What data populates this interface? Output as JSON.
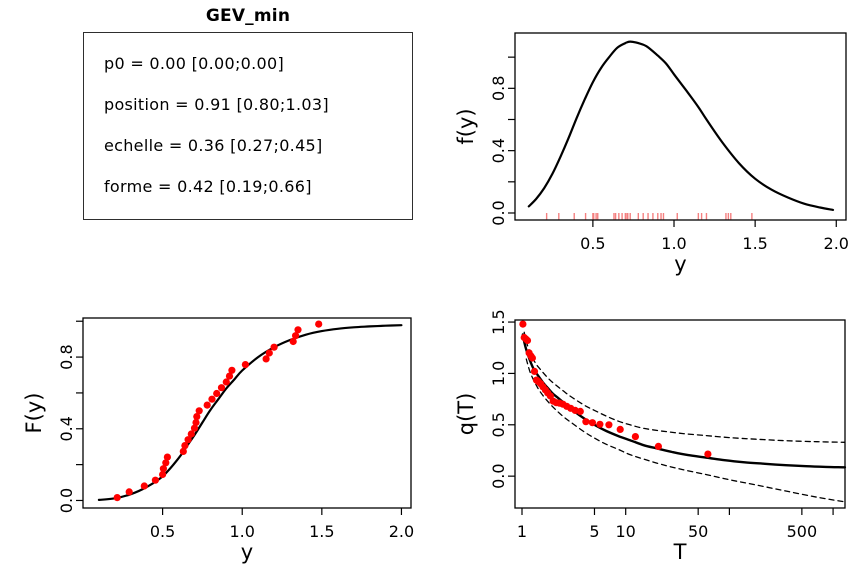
{
  "figure": {
    "title": "GEV_min",
    "colors": {
      "foreground": "#000000",
      "point_red": "#ff0000",
      "rug_red": "#f48080",
      "box_border": "#2e2e2e"
    }
  },
  "param_box": {
    "title": "GEV_min",
    "lines": [
      "p0 = 0.00 [0.00;0.00]",
      "position = 0.91 [0.80;1.03]",
      "echelle = 0.36 [0.27;0.45]",
      "forme = 0.42 [0.19;0.66]"
    ],
    "parameters": [
      {
        "name": "p0",
        "estimate": 0.0,
        "ci_low": 0.0,
        "ci_high": 0.0
      },
      {
        "name": "position",
        "estimate": 0.91,
        "ci_low": 0.8,
        "ci_high": 1.03
      },
      {
        "name": "echelle",
        "estimate": 0.36,
        "ci_low": 0.27,
        "ci_high": 0.45
      },
      {
        "name": "forme",
        "estimate": 0.42,
        "ci_low": 0.19,
        "ci_high": 0.66
      }
    ]
  },
  "chart_data": [
    {
      "id": "density",
      "type": "line",
      "title": "",
      "xlabel": "y",
      "ylabel": "f(y)",
      "xscale": "linear",
      "xlim": [
        0.02,
        2.06
      ],
      "ylim": [
        -0.045,
        1.155
      ],
      "grid": false,
      "xticks": [
        {
          "v": 0.5,
          "l": "0.5"
        },
        {
          "v": 1.0,
          "l": "1.0"
        },
        {
          "v": 1.5,
          "l": "1.5"
        },
        {
          "v": 2.0,
          "l": "2.0"
        }
      ],
      "yticks": [
        {
          "v": 0.0,
          "l": "0.0"
        },
        {
          "v": 0.2,
          "l": ""
        },
        {
          "v": 0.4,
          "l": "0.4"
        },
        {
          "v": 0.6,
          "l": ""
        },
        {
          "v": 0.8,
          "l": "0.8"
        },
        {
          "v": 1.0,
          "l": ""
        }
      ],
      "series": [
        {
          "name": "data-rug",
          "kind": "rug",
          "color": "#f48080",
          "values": [
            0.215,
            0.29,
            0.385,
            0.455,
            0.5,
            0.505,
            0.52,
            0.53,
            0.63,
            0.64,
            0.66,
            0.68,
            0.7,
            0.71,
            0.715,
            0.73,
            0.78,
            0.81,
            0.84,
            0.87,
            0.9,
            0.92,
            0.935,
            1.02,
            1.15,
            1.17,
            1.2,
            1.32,
            1.335,
            1.35,
            1.48
          ]
        },
        {
          "name": "density-curve",
          "kind": "line",
          "color": "#000000",
          "width": 2.2,
          "dash": "",
          "points": [
            [
              0.105,
              0.042
            ],
            [
              0.15,
              0.09
            ],
            [
              0.2,
              0.16
            ],
            [
              0.25,
              0.25
            ],
            [
              0.3,
              0.36
            ],
            [
              0.35,
              0.48
            ],
            [
              0.4,
              0.61
            ],
            [
              0.45,
              0.73
            ],
            [
              0.5,
              0.84
            ],
            [
              0.55,
              0.93
            ],
            [
              0.6,
              1.0
            ],
            [
              0.65,
              1.06
            ],
            [
              0.7,
              1.09
            ],
            [
              0.73,
              1.1
            ],
            [
              0.78,
              1.09
            ],
            [
              0.83,
              1.07
            ],
            [
              0.9,
              1.01
            ],
            [
              0.95,
              0.96
            ],
            [
              1.0,
              0.89
            ],
            [
              1.08,
              0.78
            ],
            [
              1.15,
              0.68
            ],
            [
              1.2,
              0.6
            ],
            [
              1.3,
              0.45
            ],
            [
              1.4,
              0.32
            ],
            [
              1.5,
              0.22
            ],
            [
              1.6,
              0.15
            ],
            [
              1.7,
              0.1
            ],
            [
              1.8,
              0.06
            ],
            [
              1.9,
              0.035
            ],
            [
              1.98,
              0.02
            ]
          ]
        }
      ]
    },
    {
      "id": "cdf",
      "type": "line+scatter",
      "title": "",
      "xlabel": "y",
      "ylabel": "F(y)",
      "xscale": "linear",
      "xlim": [
        0.0,
        2.06
      ],
      "ylim": [
        -0.042,
        1.018
      ],
      "grid": false,
      "xticks": [
        {
          "v": 0.5,
          "l": "0.5"
        },
        {
          "v": 1.0,
          "l": "1.0"
        },
        {
          "v": 1.5,
          "l": "1.5"
        },
        {
          "v": 2.0,
          "l": "2.0"
        }
      ],
      "yticks": [
        {
          "v": 0.0,
          "l": "0.0"
        },
        {
          "v": 0.2,
          "l": ""
        },
        {
          "v": 0.4,
          "l": "0.4"
        },
        {
          "v": 0.6,
          "l": ""
        },
        {
          "v": 0.8,
          "l": "0.8"
        },
        {
          "v": 1.0,
          "l": ""
        }
      ],
      "series": [
        {
          "name": "fitted-cdf-curve",
          "kind": "line",
          "color": "#000000",
          "width": 2.2,
          "dash": "",
          "points": [
            [
              0.1,
              0.003
            ],
            [
              0.2,
              0.012
            ],
            [
              0.3,
              0.035
            ],
            [
              0.4,
              0.075
            ],
            [
              0.5,
              0.135
            ],
            [
              0.6,
              0.235
            ],
            [
              0.65,
              0.3
            ],
            [
              0.7,
              0.365
            ],
            [
              0.75,
              0.435
            ],
            [
              0.8,
              0.505
            ],
            [
              0.85,
              0.565
            ],
            [
              0.9,
              0.625
            ],
            [
              0.95,
              0.675
            ],
            [
              1.0,
              0.725
            ],
            [
              1.1,
              0.8
            ],
            [
              1.2,
              0.855
            ],
            [
              1.3,
              0.895
            ],
            [
              1.4,
              0.925
            ],
            [
              1.5,
              0.945
            ],
            [
              1.6,
              0.958
            ],
            [
              1.7,
              0.966
            ],
            [
              1.8,
              0.971
            ],
            [
              1.9,
              0.975
            ],
            [
              2.0,
              0.978
            ]
          ]
        },
        {
          "name": "empirical-cdf-points",
          "kind": "points",
          "color": "#ff0000",
          "r": 3.6,
          "points": [
            [
              0.215,
              0.016
            ],
            [
              0.29,
              0.048
            ],
            [
              0.385,
              0.081
            ],
            [
              0.455,
              0.113
            ],
            [
              0.5,
              0.145
            ],
            [
              0.505,
              0.177
            ],
            [
              0.52,
              0.21
            ],
            [
              0.53,
              0.242
            ],
            [
              0.63,
              0.274
            ],
            [
              0.64,
              0.306
            ],
            [
              0.66,
              0.339
            ],
            [
              0.68,
              0.371
            ],
            [
              0.7,
              0.403
            ],
            [
              0.71,
              0.435
            ],
            [
              0.715,
              0.468
            ],
            [
              0.73,
              0.5
            ],
            [
              0.78,
              0.532
            ],
            [
              0.81,
              0.565
            ],
            [
              0.84,
              0.597
            ],
            [
              0.87,
              0.629
            ],
            [
              0.9,
              0.661
            ],
            [
              0.92,
              0.694
            ],
            [
              0.935,
              0.726
            ],
            [
              1.02,
              0.758
            ],
            [
              1.15,
              0.79
            ],
            [
              1.17,
              0.823
            ],
            [
              1.2,
              0.855
            ],
            [
              1.32,
              0.887
            ],
            [
              1.335,
              0.919
            ],
            [
              1.35,
              0.952
            ],
            [
              1.48,
              0.984
            ]
          ]
        }
      ]
    },
    {
      "id": "return_level",
      "type": "line+scatter",
      "title": "",
      "xlabel": "T",
      "ylabel": "q(T)",
      "xscale": "log",
      "xlim": [
        0.856,
        1303
      ],
      "ylim": [
        -0.31,
        1.52
      ],
      "grid": false,
      "xticks": [
        {
          "v": 1,
          "l": "1"
        },
        {
          "v": 5,
          "l": "5"
        },
        {
          "v": 10,
          "l": "10"
        },
        {
          "v": 50,
          "l": "50"
        },
        {
          "v": 100,
          "l": ""
        },
        {
          "v": 500,
          "l": "500"
        },
        {
          "v": 1000,
          "l": ""
        }
      ],
      "yticks": [
        {
          "v": 0.0,
          "l": "0.0"
        },
        {
          "v": 0.5,
          "l": "0.5"
        },
        {
          "v": 1.0,
          "l": "1.0"
        },
        {
          "v": 1.5,
          "l": "1.5"
        }
      ],
      "series": [
        {
          "name": "quantile-curve",
          "kind": "line",
          "color": "#000000",
          "width": 2.4,
          "dash": "",
          "points": [
            [
              1.02,
              1.38
            ],
            [
              1.05,
              1.31
            ],
            [
              1.1,
              1.23
            ],
            [
              1.2,
              1.12
            ],
            [
              1.3,
              1.04
            ],
            [
              1.45,
              0.97
            ],
            [
              1.6,
              0.91
            ],
            [
              1.8,
              0.85
            ],
            [
              2.0,
              0.8
            ],
            [
              2.3,
              0.75
            ],
            [
              2.7,
              0.69
            ],
            [
              3.2,
              0.63
            ],
            [
              4.0,
              0.56
            ],
            [
              5.0,
              0.5
            ],
            [
              6.5,
              0.44
            ],
            [
              8.5,
              0.39
            ],
            [
              11,
              0.35
            ],
            [
              15,
              0.3
            ],
            [
              20,
              0.27
            ],
            [
              28,
              0.235
            ],
            [
              40,
              0.205
            ],
            [
              60,
              0.18
            ],
            [
              90,
              0.155
            ],
            [
              140,
              0.135
            ],
            [
              220,
              0.12
            ],
            [
              350,
              0.107
            ],
            [
              550,
              0.097
            ],
            [
              850,
              0.09
            ],
            [
              1300,
              0.086
            ]
          ]
        },
        {
          "name": "ci-upper-curve",
          "kind": "line",
          "color": "#000000",
          "width": 1.3,
          "dash": "5 4",
          "points": [
            [
              1.05,
              1.4
            ],
            [
              1.1,
              1.31
            ],
            [
              1.2,
              1.2
            ],
            [
              1.35,
              1.1
            ],
            [
              1.5,
              1.04
            ],
            [
              1.8,
              0.95
            ],
            [
              2.1,
              0.89
            ],
            [
              2.5,
              0.83
            ],
            [
              3,
              0.77
            ],
            [
              4,
              0.69
            ],
            [
              5,
              0.64
            ],
            [
              6.5,
              0.585
            ],
            [
              8.5,
              0.535
            ],
            [
              11,
              0.5
            ],
            [
              15,
              0.465
            ],
            [
              22,
              0.44
            ],
            [
              35,
              0.415
            ],
            [
              60,
              0.395
            ],
            [
              100,
              0.375
            ],
            [
              180,
              0.36
            ],
            [
              350,
              0.345
            ],
            [
              700,
              0.335
            ],
            [
              1300,
              0.33
            ]
          ]
        },
        {
          "name": "ci-lower-curve",
          "kind": "line",
          "color": "#000000",
          "width": 1.3,
          "dash": "5 4",
          "points": [
            [
              1.1,
              1.14
            ],
            [
              1.2,
              1.01
            ],
            [
              1.35,
              0.9
            ],
            [
              1.5,
              0.82
            ],
            [
              1.8,
              0.72
            ],
            [
              2.1,
              0.65
            ],
            [
              2.5,
              0.58
            ],
            [
              3,
              0.52
            ],
            [
              4,
              0.43
            ],
            [
              5,
              0.37
            ],
            [
              6.5,
              0.31
            ],
            [
              8.5,
              0.26
            ],
            [
              11,
              0.21
            ],
            [
              15,
              0.165
            ],
            [
              22,
              0.115
            ],
            [
              35,
              0.065
            ],
            [
              60,
              0.015
            ],
            [
              100,
              -0.035
            ],
            [
              180,
              -0.085
            ],
            [
              350,
              -0.145
            ],
            [
              700,
              -0.205
            ],
            [
              1300,
              -0.25
            ]
          ]
        },
        {
          "name": "return-period-points",
          "kind": "points",
          "color": "#ff0000",
          "r": 3.6,
          "points": [
            [
              62.0,
              0.215
            ],
            [
              20.67,
              0.29
            ],
            [
              12.4,
              0.385
            ],
            [
              8.86,
              0.455
            ],
            [
              6.89,
              0.5
            ],
            [
              5.64,
              0.505
            ],
            [
              4.77,
              0.52
            ],
            [
              4.13,
              0.53
            ],
            [
              3.65,
              0.63
            ],
            [
              3.26,
              0.64
            ],
            [
              2.95,
              0.66
            ],
            [
              2.7,
              0.68
            ],
            [
              2.48,
              0.7
            ],
            [
              2.3,
              0.71
            ],
            [
              2.14,
              0.715
            ],
            [
              2.0,
              0.73
            ],
            [
              1.88,
              0.78
            ],
            [
              1.77,
              0.81
            ],
            [
              1.68,
              0.84
            ],
            [
              1.59,
              0.87
            ],
            [
              1.51,
              0.9
            ],
            [
              1.44,
              0.92
            ],
            [
              1.38,
              0.935
            ],
            [
              1.32,
              1.02
            ],
            [
              1.26,
              1.15
            ],
            [
              1.22,
              1.17
            ],
            [
              1.17,
              1.2
            ],
            [
              1.13,
              1.32
            ],
            [
              1.09,
              1.335
            ],
            [
              1.05,
              1.35
            ],
            [
              1.02,
              1.48
            ]
          ]
        }
      ]
    }
  ]
}
